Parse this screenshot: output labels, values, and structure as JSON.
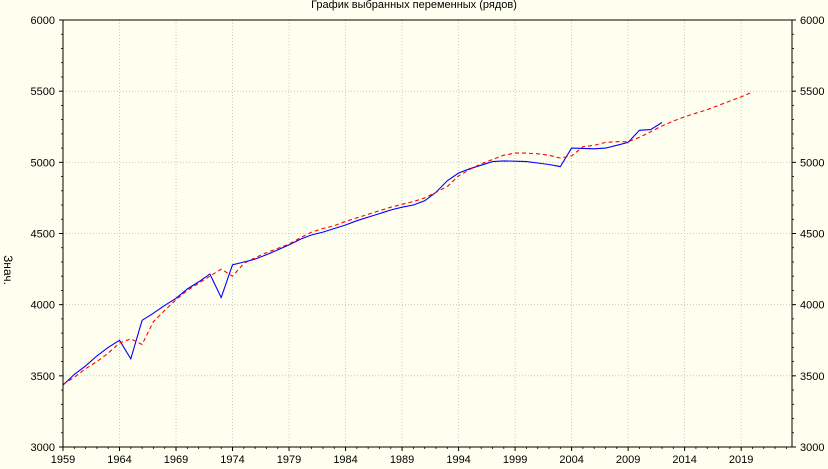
{
  "chart_data": {
    "type": "line",
    "title": "График выбранных переменных (рядов)",
    "xlabel": "",
    "ylabel": "Знач.",
    "xlim": [
      1959,
      2023.5
    ],
    "ylim": [
      3000,
      6000
    ],
    "x_ticks": [
      1959,
      1964,
      1969,
      1974,
      1979,
      1984,
      1989,
      1994,
      1999,
      2004,
      2009,
      2014,
      2019
    ],
    "y_ticks": [
      3000,
      3500,
      4000,
      4500,
      5000,
      5500,
      6000
    ],
    "grid": true,
    "y_axis_both_sides": true,
    "series": [
      {
        "color": "#0000ff",
        "dash": "solid",
        "x": [
          1959,
          1960,
          1961,
          1962,
          1963,
          1964,
          1965,
          1966,
          1967,
          1968,
          1969,
          1970,
          1971,
          1972,
          1973,
          1974,
          1975,
          1976,
          1977,
          1978,
          1979,
          1980,
          1981,
          1982,
          1983,
          1984,
          1985,
          1986,
          1987,
          1988,
          1989,
          1990,
          1991,
          1992,
          1993,
          1994,
          1995,
          1996,
          1997,
          1998,
          1999,
          2000,
          2001,
          2002,
          2003,
          2004,
          2005,
          2006,
          2007,
          2008,
          2009,
          2010,
          2011,
          2012
        ],
        "y": [
          3435,
          3510,
          3570,
          3640,
          3700,
          3750,
          3620,
          3890,
          3940,
          3995,
          4045,
          4110,
          4160,
          4215,
          4050,
          4280,
          4300,
          4320,
          4350,
          4385,
          4420,
          4460,
          4490,
          4510,
          4535,
          4560,
          4590,
          4615,
          4640,
          4665,
          4685,
          4700,
          4730,
          4790,
          4870,
          4925,
          4955,
          4980,
          5005,
          5010,
          5008,
          5005,
          4995,
          4985,
          4970,
          5100,
          5098,
          5095,
          5100,
          5120,
          5140,
          5225,
          5230,
          5280
        ]
      },
      {
        "color": "#ff0000",
        "dash": "dashed",
        "x": [
          1959,
          1960,
          1961,
          1962,
          1963,
          1964,
          1965,
          1966,
          1967,
          1968,
          1969,
          1970,
          1971,
          1972,
          1973,
          1974,
          1975,
          1976,
          1977,
          1978,
          1979,
          1980,
          1981,
          1982,
          1983,
          1984,
          1985,
          1986,
          1987,
          1988,
          1989,
          1990,
          1991,
          1992,
          1993,
          1994,
          1995,
          1996,
          1997,
          1998,
          1999,
          2000,
          2001,
          2002,
          2003,
          2004,
          2005,
          2006,
          2007,
          2008,
          2009,
          2010,
          2011,
          2012,
          2013,
          2014,
          2015,
          2016,
          2017,
          2018,
          2019,
          2020
        ],
        "y": [
          3440,
          3490,
          3550,
          3600,
          3660,
          3730,
          3760,
          3720,
          3880,
          3960,
          4035,
          4100,
          4150,
          4200,
          4250,
          4200,
          4290,
          4330,
          4365,
          4395,
          4425,
          4470,
          4510,
          4535,
          4555,
          4585,
          4610,
          4635,
          4660,
          4685,
          4705,
          4725,
          4750,
          4790,
          4830,
          4905,
          4950,
          4990,
          5020,
          5050,
          5065,
          5065,
          5060,
          5050,
          5030,
          5045,
          5110,
          5120,
          5140,
          5145,
          5145,
          5175,
          5215,
          5255,
          5290,
          5320,
          5345,
          5370,
          5400,
          5430,
          5460,
          5495
        ]
      }
    ]
  }
}
